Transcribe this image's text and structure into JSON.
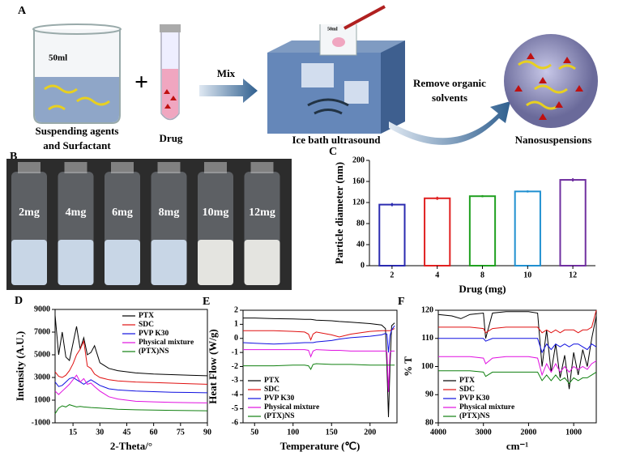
{
  "panel_a": {
    "panel_label": "A",
    "beaker_volume": "50ml",
    "small_beaker_volume": "50ml",
    "plus": "+",
    "mix": "Mix",
    "beaker_label": [
      "Suspending agents",
      "and Surfactant"
    ],
    "drug_label": "Drug",
    "bath_label": "Ice bath ultrasound",
    "remove_label": [
      "Remove organic",
      "solvents"
    ],
    "product_label": "Nanosuspensions"
  },
  "panel_b": {
    "panel_label": "B",
    "vial_labels": [
      "2mg",
      "4mg",
      "6mg",
      "8mg",
      "10mg",
      "12mg"
    ]
  },
  "chart_data": [
    {
      "type": "bar",
      "panel_label": "C",
      "x_label": "Drug (mg)",
      "y_label": "Particle diameter (nm)",
      "categories": [
        "2",
        "4",
        "8",
        "10",
        "12"
      ],
      "values": [
        116,
        128,
        132,
        141,
        163
      ],
      "errors": [
        3,
        3,
        2,
        2,
        3
      ],
      "colors": [
        "#2b2bb0",
        "#e02020",
        "#20a020",
        "#2090d0",
        "#7030a0"
      ],
      "ylim": [
        0,
        200
      ],
      "yticks": [
        0,
        40,
        80,
        120,
        160,
        200
      ]
    },
    {
      "type": "line",
      "panel_label": "D",
      "x_label": "2-Theta/°",
      "y_label": "Intensity  (A.U.)",
      "legend": "upper right",
      "x": [
        5,
        7,
        9,
        11,
        13,
        15,
        17,
        19,
        21,
        23,
        25,
        27,
        30,
        35,
        40,
        50,
        60,
        70,
        80,
        90
      ],
      "xlim": [
        5,
        90
      ],
      "xticks": [
        15,
        30,
        45,
        60,
        75,
        90
      ],
      "ylim": [
        -1000,
        9000
      ],
      "yticks": [
        -1000,
        1000,
        3000,
        5000,
        7000,
        9000
      ],
      "series": [
        {
          "name": "PTX",
          "color": "#000000",
          "values": [
            8500,
            5000,
            7000,
            4800,
            4500,
            6000,
            7500,
            5500,
            6500,
            5000,
            5200,
            5800,
            4300,
            3800,
            3600,
            3400,
            3300,
            3250,
            3200,
            3150
          ]
        },
        {
          "name": "SDC",
          "color": "#e01010",
          "values": [
            3500,
            3100,
            3000,
            3200,
            3600,
            4200,
            5000,
            5500,
            6200,
            4000,
            3800,
            3300,
            3000,
            2800,
            2700,
            2600,
            2550,
            2500,
            2450,
            2400
          ]
        },
        {
          "name": "PVP K30",
          "color": "#1010e0",
          "values": [
            2600,
            2200,
            2300,
            2600,
            2900,
            3000,
            2800,
            2600,
            2400,
            2600,
            2800,
            2600,
            2300,
            2000,
            1900,
            1800,
            1750,
            1700,
            1680,
            1650
          ]
        },
        {
          "name": "Physical mixture",
          "color": "#e010e0",
          "values": [
            1800,
            1500,
            1800,
            2100,
            2400,
            2800,
            3200,
            2600,
            2900,
            2400,
            2500,
            2200,
            1800,
            1300,
            1100,
            900,
            850,
            800,
            780,
            760
          ]
        },
        {
          "name": "(PTX)NS",
          "color": "#108010",
          "values": [
            -200,
            300,
            500,
            400,
            600,
            500,
            400,
            450,
            400,
            380,
            350,
            330,
            300,
            250,
            200,
            150,
            120,
            100,
            80,
            60
          ]
        }
      ]
    },
    {
      "type": "line",
      "panel_label": "E",
      "x_label": "Temperature (℃)",
      "y_label": "Heat Flow (W/g)",
      "legend": "lower left",
      "x": [
        35,
        50,
        75,
        100,
        115,
        120,
        123,
        126,
        130,
        150,
        160,
        175,
        200,
        215,
        220,
        222,
        224,
        226,
        228,
        232
      ],
      "xlim": [
        35,
        235
      ],
      "xticks": [
        50,
        100,
        150,
        200
      ],
      "ylim": [
        -6,
        2
      ],
      "yticks": [
        -6,
        -5,
        -4,
        -3,
        -2,
        -1,
        0,
        1,
        2
      ],
      "series": [
        {
          "name": "PTX",
          "color": "#000000",
          "values": [
            1.45,
            1.45,
            1.4,
            1.38,
            1.35,
            1.35,
            1.35,
            1.33,
            1.3,
            1.25,
            1.2,
            1.15,
            1.05,
            0.95,
            0.7,
            -2,
            -5.6,
            -2,
            0.9,
            1.1
          ]
        },
        {
          "name": "SDC",
          "color": "#e01010",
          "values": [
            0.55,
            0.55,
            0.55,
            0.5,
            0.45,
            0.3,
            -0.1,
            0.3,
            0.45,
            0.25,
            0.1,
            0.3,
            0.5,
            0.55,
            0.55,
            0.55,
            0.55,
            0.55,
            0.6,
            0.7
          ]
        },
        {
          "name": "PVP K30",
          "color": "#1010e0",
          "values": [
            -0.3,
            -0.35,
            -0.4,
            -0.35,
            -0.3,
            -0.3,
            -0.3,
            -0.3,
            -0.25,
            -0.15,
            -0.05,
            0.05,
            0.15,
            0.25,
            0.35,
            0.3,
            -1,
            0.2,
            0.6,
            0.9
          ]
        },
        {
          "name": "Physical mixture",
          "color": "#e010e0",
          "values": [
            -0.8,
            -0.8,
            -0.8,
            -0.8,
            -0.8,
            -0.85,
            -1.3,
            -0.9,
            -0.8,
            -0.85,
            -0.85,
            -0.9,
            -0.9,
            -0.9,
            -0.9,
            -0.95,
            -3.8,
            -1,
            -0.9,
            -0.9
          ]
        },
        {
          "name": "(PTX)NS",
          "color": "#108010",
          "values": [
            -1.95,
            -1.95,
            -1.95,
            -1.9,
            -1.9,
            -1.95,
            -2.2,
            -1.85,
            -1.8,
            -1.85,
            -1.85,
            -1.85,
            -1.9,
            -1.9,
            -1.9,
            -1.9,
            -1.9,
            -1.9,
            -1.9,
            -1.9
          ]
        }
      ]
    },
    {
      "type": "line",
      "panel_label": "F",
      "x_label": "cm⁻¹",
      "y_label": "% T",
      "legend": "lower left",
      "x": [
        4000,
        3700,
        3500,
        3300,
        3000,
        2950,
        2800,
        2500,
        2000,
        1800,
        1700,
        1600,
        1500,
        1400,
        1300,
        1200,
        1100,
        1000,
        900,
        800,
        700,
        600,
        500
      ],
      "xlim": [
        4000,
        500
      ],
      "xticks": [
        4000,
        3000,
        2000,
        1000
      ],
      "ylim": [
        80,
        120
      ],
      "yticks": [
        80,
        90,
        100,
        110,
        120
      ],
      "series": [
        {
          "name": "PTX",
          "color": "#000000",
          "values": [
            118.5,
            118,
            117,
            118.5,
            119,
            110,
            119,
            119.5,
            119.5,
            119,
            100,
            113,
            98,
            108,
            96,
            104,
            92,
            105,
            97,
            106,
            100,
            110,
            118
          ]
        },
        {
          "name": "SDC",
          "color": "#e01010",
          "values": [
            114,
            114,
            114,
            114,
            113.5,
            112,
            113.5,
            114,
            114,
            114,
            112,
            113,
            112,
            113,
            112,
            113,
            113,
            113,
            112,
            113,
            113,
            114,
            120
          ]
        },
        {
          "name": "PVP K30",
          "color": "#1010e0",
          "values": [
            110,
            110,
            110,
            110,
            110,
            109,
            110,
            110,
            110,
            110,
            105,
            108,
            106,
            108,
            107,
            108,
            107,
            108,
            108,
            107,
            106,
            108,
            107
          ]
        },
        {
          "name": "Physical mixture",
          "color": "#e010e0",
          "values": [
            103.5,
            103.5,
            103.5,
            103.5,
            103,
            101,
            103,
            103.5,
            103.5,
            103,
            97,
            101,
            98,
            101,
            98,
            100,
            98,
            100,
            99,
            100,
            99,
            101,
            102
          ]
        },
        {
          "name": "(PTX)NS",
          "color": "#108010",
          "values": [
            98.5,
            98.5,
            98.5,
            98.5,
            98,
            96.5,
            98,
            98,
            98,
            98,
            95,
            97,
            95,
            97,
            95,
            96,
            94,
            96,
            95,
            96,
            96,
            97,
            98
          ]
        }
      ]
    }
  ]
}
